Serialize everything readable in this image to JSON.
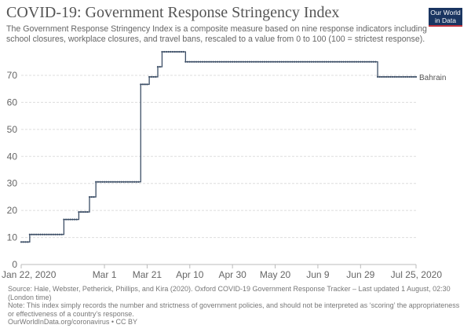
{
  "header": {
    "title": "COVID-19: Government Response Stringency Index",
    "subtitle": "The Government Response Stringency Index is a composite measure based on nine response indicators including school closures, workplace closures, and travel bans, rescaled to a value from 0 to 100 (100 = strictest response).",
    "logo": "Our World in Data"
  },
  "chart_data": {
    "type": "line",
    "interpolation": "step",
    "title": "COVID-19: Government Response Stringency Index",
    "xlabel": "",
    "ylabel": "",
    "ylim": [
      0,
      70
    ],
    "xlim": [
      "2020-01-22",
      "2020-07-25"
    ],
    "yticks": [
      0,
      10,
      20,
      30,
      40,
      50,
      60,
      70
    ],
    "xticks": [
      {
        "date": "2020-01-22",
        "label": "Jan 22, 2020"
      },
      {
        "date": "2020-03-01",
        "label": "Mar 1"
      },
      {
        "date": "2020-03-21",
        "label": "Mar 21"
      },
      {
        "date": "2020-04-10",
        "label": "Apr 10"
      },
      {
        "date": "2020-04-30",
        "label": "Apr 30"
      },
      {
        "date": "2020-05-20",
        "label": "May 20"
      },
      {
        "date": "2020-06-09",
        "label": "Jun 9"
      },
      {
        "date": "2020-06-29",
        "label": "Jun 29"
      },
      {
        "date": "2020-07-25",
        "label": "Jul 25, 2020"
      }
    ],
    "grid": "horizontal-dashed",
    "color": "#3c4e66",
    "series": [
      {
        "name": "Bahrain",
        "points": [
          [
            "2020-01-22",
            8.33
          ],
          [
            "2020-01-26",
            11.11
          ],
          [
            "2020-02-11",
            16.67
          ],
          [
            "2020-02-18",
            19.44
          ],
          [
            "2020-02-23",
            25.0
          ],
          [
            "2020-02-26",
            30.56
          ],
          [
            "2020-03-18",
            66.67
          ],
          [
            "2020-03-22",
            69.44
          ],
          [
            "2020-03-26",
            73.15
          ],
          [
            "2020-03-28",
            78.7
          ],
          [
            "2020-04-08",
            75.0
          ],
          [
            "2020-07-07",
            69.44
          ],
          [
            "2020-07-25",
            69.44
          ]
        ]
      }
    ]
  },
  "footer": {
    "source": "Source: Hale, Webster, Petherick, Phillips, and Kira (2020). Oxford COVID-19 Government Response Tracker – Last updated 1 August, 02:30 (London time)",
    "note": "Note: This index simply records the number and strictness of government policies, and should not be interpreted as ‘scoring’ the appropriateness or effectiveness of a country’s response.",
    "credit": "OurWorldInData.org/coronavirus • CC BY"
  }
}
